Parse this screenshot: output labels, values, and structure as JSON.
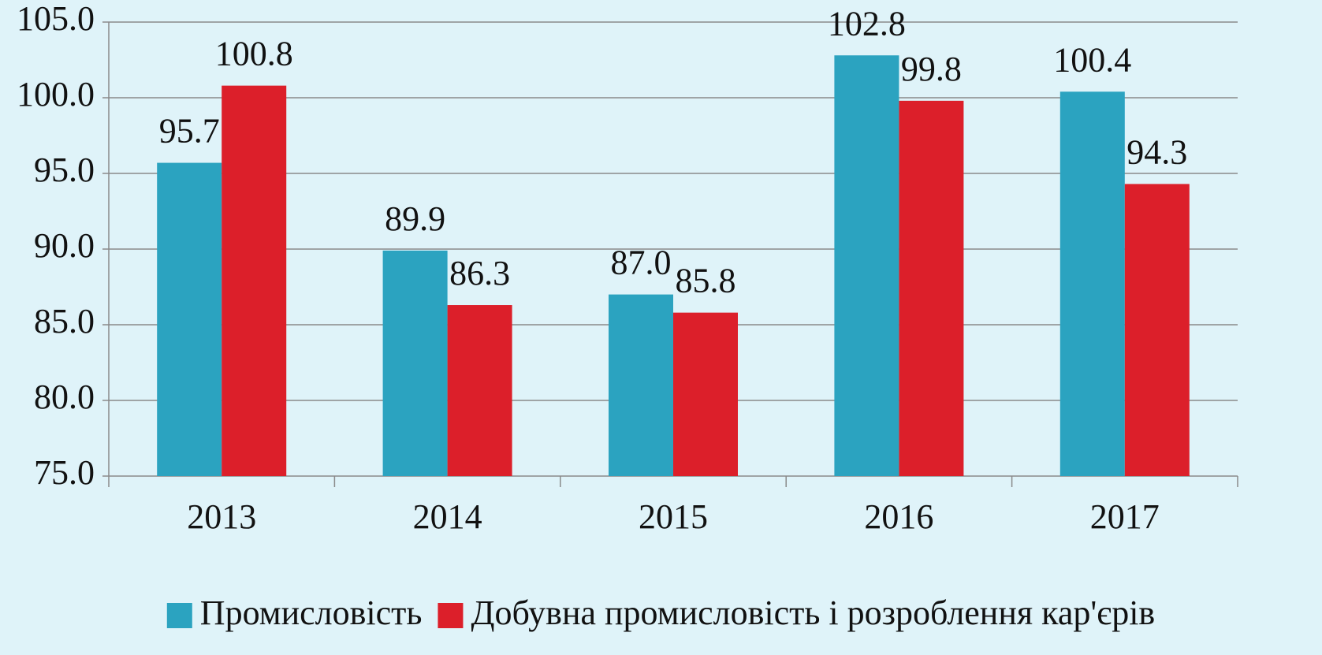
{
  "chart_data": {
    "type": "bar",
    "categories": [
      "2013",
      "2014",
      "2015",
      "2016",
      "2017"
    ],
    "series": [
      {
        "name": "Промисловість",
        "color": "#2ba3c0",
        "values": [
          95.7,
          89.9,
          87.0,
          102.8,
          100.4
        ],
        "value_labels": [
          "95.7",
          "89.9",
          "87.0",
          "102.8",
          "100.4"
        ]
      },
      {
        "name": "Добувна промисловість і розроблення кар'єрів",
        "color": "#dc1f2a",
        "values": [
          100.8,
          86.3,
          85.8,
          99.8,
          94.3
        ],
        "value_labels": [
          "100.8",
          "86.3",
          "85.8",
          "99.8",
          "94.3"
        ]
      }
    ],
    "ylim": [
      75,
      105
    ],
    "yticks": [
      {
        "value": 75,
        "label": "75.0"
      },
      {
        "value": 80,
        "label": "80.0"
      },
      {
        "value": 85,
        "label": "85.0"
      },
      {
        "value": 90,
        "label": "90.0"
      },
      {
        "value": 95,
        "label": "95.0"
      },
      {
        "value": 100,
        "label": "100.0"
      },
      {
        "value": 105,
        "label": "105.0"
      }
    ],
    "grid": true,
    "legend": "bottom"
  }
}
